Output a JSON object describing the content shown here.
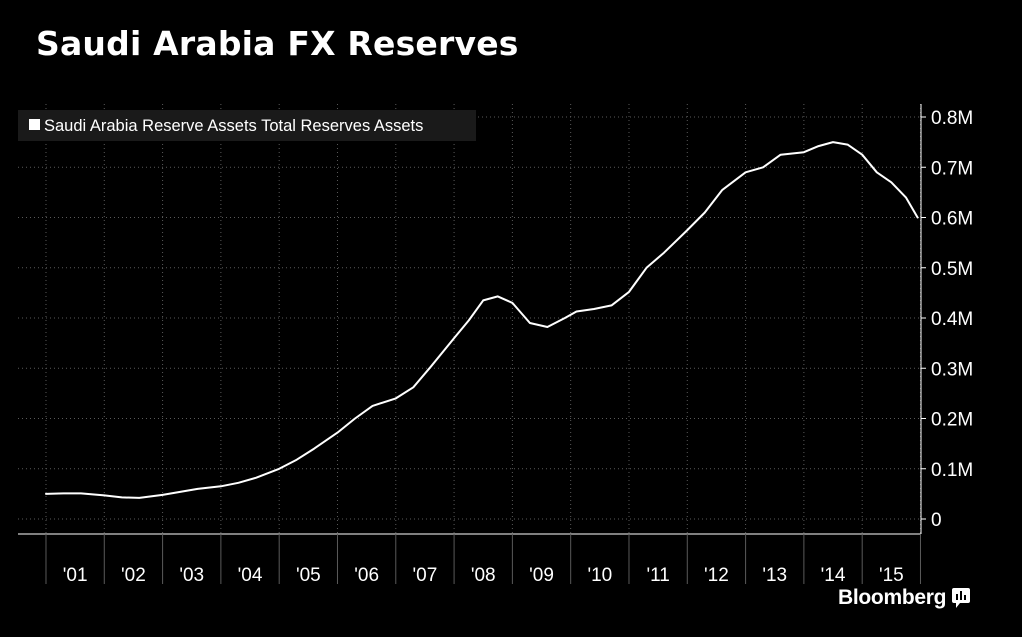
{
  "chart_data": {
    "type": "line",
    "title": "Saudi Arabia FX Reserves",
    "xlabel": "",
    "ylabel": "",
    "ylim": [
      0,
      800000
    ],
    "grid": true,
    "legend_position": "top-left",
    "colors": {
      "background": "#000000",
      "line": "#ffffff",
      "grid": "#5a5a5a",
      "legend_bg": "#1a1a1a"
    },
    "x_tick_labels": [
      "'01",
      "'02",
      "'03",
      "'04",
      "'05",
      "'06",
      "'07",
      "'08",
      "'09",
      "'10",
      "'11",
      "'12",
      "'13",
      "'14",
      "'15"
    ],
    "y_tick_labels": [
      "0",
      "0.1M",
      "0.2M",
      "0.3M",
      "0.4M",
      "0.5M",
      "0.6M",
      "0.7M",
      "0.8M"
    ],
    "y_tick_values": [
      0,
      100000,
      200000,
      300000,
      400000,
      500000,
      600000,
      700000,
      800000
    ],
    "series": [
      {
        "name": "Saudi Arabia Reserve Assets Total Reserves Assets",
        "x": [
          2001.0,
          2001.3,
          2001.6,
          2002.0,
          2002.3,
          2002.6,
          2003.0,
          2003.3,
          2003.6,
          2004.0,
          2004.3,
          2004.6,
          2005.0,
          2005.3,
          2005.6,
          2006.0,
          2006.3,
          2006.6,
          2007.0,
          2007.3,
          2007.6,
          2008.0,
          2008.25,
          2008.5,
          2008.75,
          2009.0,
          2009.3,
          2009.6,
          2009.9,
          2010.1,
          2010.4,
          2010.7,
          2011.0,
          2011.3,
          2011.6,
          2012.0,
          2012.3,
          2012.6,
          2013.0,
          2013.3,
          2013.6,
          2014.0,
          2014.25,
          2014.5,
          2014.75,
          2015.0,
          2015.25,
          2015.5,
          2015.75,
          2015.95
        ],
        "values": [
          50000,
          51000,
          51000,
          47000,
          43000,
          42000,
          48000,
          54000,
          60000,
          65000,
          72000,
          82000,
          100000,
          118000,
          140000,
          172000,
          200000,
          225000,
          240000,
          262000,
          303000,
          360000,
          395000,
          435000,
          443000,
          430000,
          390000,
          382000,
          400000,
          413000,
          418000,
          425000,
          452000,
          500000,
          530000,
          575000,
          610000,
          655000,
          690000,
          700000,
          725000,
          730000,
          742000,
          750000,
          745000,
          725000,
          690000,
          670000,
          640000,
          600000
        ]
      }
    ]
  },
  "legend": {
    "label": "Saudi Arabia Reserve Assets Total Reserves Assets"
  },
  "branding": {
    "name": "Bloomberg"
  }
}
